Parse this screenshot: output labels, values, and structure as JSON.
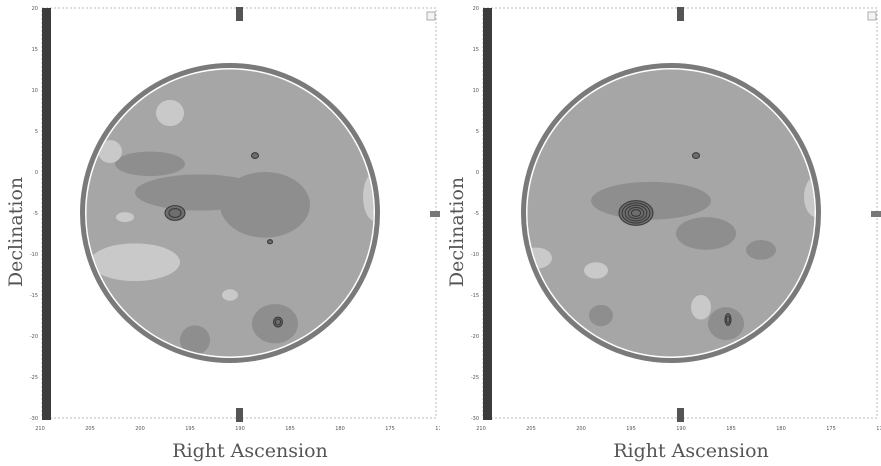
{
  "chart_data": [
    {
      "type": "heatmap",
      "title": "",
      "xlabel": "Right Ascension",
      "ylabel": "Declination",
      "x_ticks": [
        "210",
        "205",
        "200",
        "195",
        "190",
        "185",
        "180",
        "175",
        "170"
      ],
      "y_ticks": [
        "20",
        "15",
        "10",
        "5",
        "0",
        "-5",
        "-10",
        "-15",
        "-20",
        "-25",
        "-30"
      ],
      "xlim": [
        210,
        170
      ],
      "ylim": [
        -30,
        20
      ],
      "field_center": [
        191,
        -5
      ],
      "field_radius_deg": 17.5,
      "background_level": "medium",
      "bright_regions": [
        {
          "ra": 200.5,
          "dec": -11.0,
          "rx": 4.5,
          "ry": 2.3,
          "level": "high"
        },
        {
          "ra": 201.5,
          "dec": -5.5,
          "rx": 0.9,
          "ry": 0.6,
          "level": "high"
        },
        {
          "ra": 203.0,
          "dec": 2.5,
          "rx": 1.2,
          "ry": 1.4,
          "level": "high"
        },
        {
          "ra": 197.0,
          "dec": 7.2,
          "rx": 1.4,
          "ry": 1.6,
          "level": "high"
        },
        {
          "ra": 191.0,
          "dec": -15.0,
          "rx": 0.8,
          "ry": 0.7,
          "level": "high"
        },
        {
          "ra": 176.5,
          "dec": -3.0,
          "rx": 1.2,
          "ry": 3.0,
          "level": "high"
        }
      ],
      "dim_regions": [
        {
          "ra": 194.0,
          "dec": -2.5,
          "rx": 6.5,
          "ry": 2.2,
          "level": "low"
        },
        {
          "ra": 187.5,
          "dec": -4.0,
          "rx": 4.5,
          "ry": 4.0,
          "level": "low"
        },
        {
          "ra": 199.0,
          "dec": 1.0,
          "rx": 3.5,
          "ry": 1.5,
          "level": "low"
        },
        {
          "ra": 186.5,
          "dec": -18.5,
          "rx": 2.3,
          "ry": 2.4,
          "level": "low"
        },
        {
          "ra": 194.5,
          "dec": -20.5,
          "rx": 1.5,
          "ry": 1.8,
          "level": "low"
        }
      ],
      "sources": [
        {
          "ra": 196.5,
          "dec": -5.0,
          "rx": 1.0,
          "ry": 0.9,
          "contours": 2
        },
        {
          "ra": 187.0,
          "dec": -8.5,
          "rx": 0.25,
          "ry": 0.25,
          "contours": 1
        },
        {
          "ra": 186.2,
          "dec": -18.3,
          "rx": 0.45,
          "ry": 0.6,
          "contours": 2
        },
        {
          "ra": 188.5,
          "dec": 2.0,
          "rx": 0.35,
          "ry": 0.35,
          "contours": 1
        }
      ]
    },
    {
      "type": "heatmap",
      "title": "",
      "xlabel": "Right Ascension",
      "ylabel": "Declination",
      "x_ticks": [
        "210",
        "205",
        "200",
        "195",
        "190",
        "185",
        "180",
        "175",
        "170"
      ],
      "y_ticks": [
        "20",
        "15",
        "10",
        "5",
        "0",
        "-5",
        "-10",
        "-15",
        "-20",
        "-25",
        "-30"
      ],
      "xlim": [
        210,
        170
      ],
      "ylim": [
        -30,
        20
      ],
      "field_center": [
        191,
        -5
      ],
      "field_radius_deg": 17.5,
      "background_level": "medium",
      "bright_regions": [
        {
          "ra": 176.5,
          "dec": -3.0,
          "rx": 1.2,
          "ry": 2.5,
          "level": "high"
        },
        {
          "ra": 204.5,
          "dec": -10.5,
          "rx": 1.6,
          "ry": 1.3,
          "level": "high"
        },
        {
          "ra": 188.0,
          "dec": -16.5,
          "rx": 1.0,
          "ry": 1.5,
          "level": "high"
        },
        {
          "ra": 198.5,
          "dec": -12.0,
          "rx": 1.2,
          "ry": 1.0,
          "level": "high"
        },
        {
          "ra": 176.0,
          "dec": -9.0,
          "rx": 0.7,
          "ry": 0.9,
          "level": "high"
        }
      ],
      "dim_regions": [
        {
          "ra": 193.0,
          "dec": -3.5,
          "rx": 6.0,
          "ry": 2.3,
          "level": "low"
        },
        {
          "ra": 187.5,
          "dec": -7.5,
          "rx": 3.0,
          "ry": 2.0,
          "level": "low"
        },
        {
          "ra": 182.0,
          "dec": -9.5,
          "rx": 1.5,
          "ry": 1.2,
          "level": "low"
        },
        {
          "ra": 198.0,
          "dec": -17.5,
          "rx": 1.2,
          "ry": 1.3,
          "level": "low"
        },
        {
          "ra": 185.5,
          "dec": -18.5,
          "rx": 1.8,
          "ry": 2.0,
          "level": "low"
        }
      ],
      "sources": [
        {
          "ra": 194.5,
          "dec": -5.0,
          "rx": 1.7,
          "ry": 1.5,
          "contours": 5
        },
        {
          "ra": 185.3,
          "dec": -18.0,
          "rx": 0.3,
          "ry": 0.7,
          "contours": 2
        },
        {
          "ra": 188.5,
          "dec": 2.0,
          "rx": 0.35,
          "ry": 0.35,
          "contours": 1
        }
      ]
    }
  ]
}
